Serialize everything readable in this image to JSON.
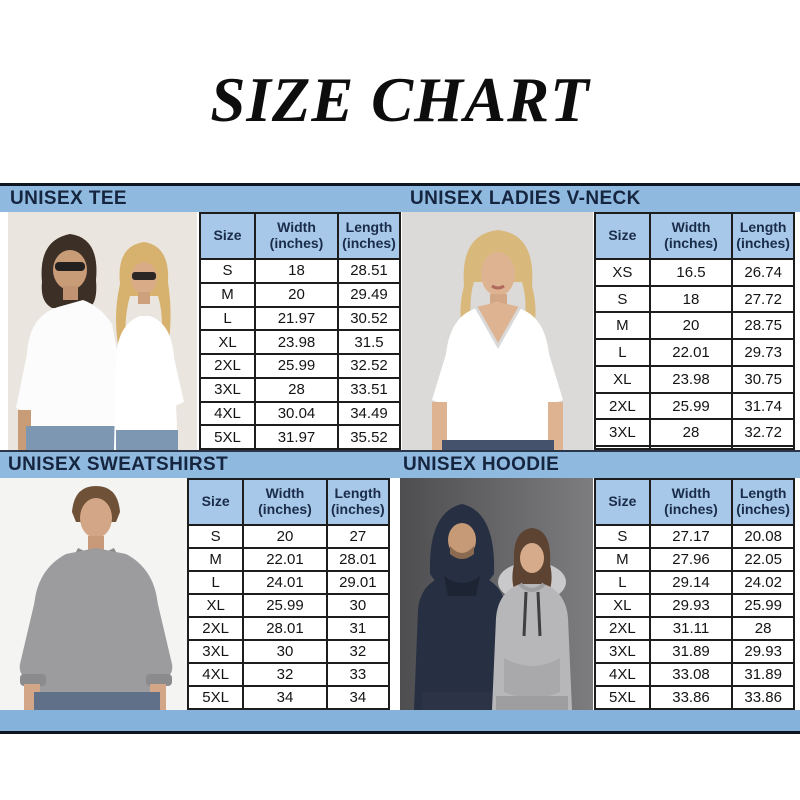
{
  "title": "SIZE CHART",
  "table_columns": [
    "Size",
    "Width (inches)",
    "Length (inches)"
  ],
  "sections": [
    {
      "label": "UNISEX TEE",
      "photo": "man-and-woman-in-white-tees",
      "rows": [
        [
          "S",
          "18",
          "28.51"
        ],
        [
          "M",
          "20",
          "29.49"
        ],
        [
          "L",
          "21.97",
          "30.52"
        ],
        [
          "XL",
          "23.98",
          "31.5"
        ],
        [
          "2XL",
          "25.99",
          "32.52"
        ],
        [
          "3XL",
          "28",
          "33.51"
        ],
        [
          "4XL",
          "30.04",
          "34.49"
        ],
        [
          "5XL",
          "31.97",
          "35.52"
        ]
      ]
    },
    {
      "label": "UNISEX LADIES V-NECK",
      "photo": "blonde-woman-in-white-v-neck",
      "rows": [
        [
          "XS",
          "16.5",
          "26.74"
        ],
        [
          "S",
          "18",
          "27.72"
        ],
        [
          "M",
          "20",
          "28.75"
        ],
        [
          "L",
          "22.01",
          "29.73"
        ],
        [
          "XL",
          "23.98",
          "30.75"
        ],
        [
          "2XL",
          "25.99",
          "31.74"
        ],
        [
          "3XL",
          "28",
          "32.72"
        ],
        [
          "",
          "",
          ""
        ]
      ]
    },
    {
      "label": "UNISEX SWEATSHIRST",
      "photo": "man-in-gray-crewneck-sweatshirt",
      "rows": [
        [
          "S",
          "20",
          "27"
        ],
        [
          "M",
          "22.01",
          "28.01"
        ],
        [
          "L",
          "24.01",
          "29.01"
        ],
        [
          "XL",
          "25.99",
          "30"
        ],
        [
          "2XL",
          "28.01",
          "31"
        ],
        [
          "3XL",
          "30",
          "32"
        ],
        [
          "4XL",
          "32",
          "33"
        ],
        [
          "5XL",
          "34",
          "34"
        ]
      ]
    },
    {
      "label": "UNISEX HOODIE",
      "photo": "man-in-navy-hoodie-and-woman-in-gray-hoodie",
      "rows": [
        [
          "S",
          "27.17",
          "20.08"
        ],
        [
          "M",
          "27.96",
          "22.05"
        ],
        [
          "L",
          "29.14",
          "24.02"
        ],
        [
          "XL",
          "29.93",
          "25.99"
        ],
        [
          "2XL",
          "31.11",
          "28"
        ],
        [
          "3XL",
          "31.89",
          "29.93"
        ],
        [
          "4XL",
          "33.08",
          "31.89"
        ],
        [
          "5XL",
          "33.86",
          "33.86"
        ]
      ]
    }
  ],
  "colors": {
    "band_blue": "#8fb9de",
    "bottom_band_blue": "#85b2da",
    "header_cell_blue": "#a7c8e8",
    "band_text_navy": "#16253f",
    "table_border": "#1d1d1d",
    "dark_rule": "#0e1522",
    "title_black": "#0d0d0d"
  }
}
